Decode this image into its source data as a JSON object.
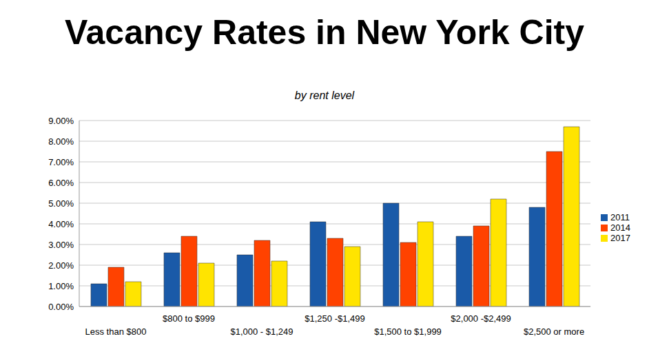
{
  "chart_data": {
    "type": "bar",
    "title": "Vacancy Rates in New York City",
    "subtitle": "by rent level",
    "categories": [
      "Less than $800",
      "$800 to $999",
      "$1,000 - $1,249",
      "$1,250 -$1,499",
      "$1,500 to $1,999",
      "$2,000 -$2,499",
      "$2,500 or more"
    ],
    "series": [
      {
        "name": "2011",
        "color": "#1a5aa8",
        "values": [
          1.1,
          2.6,
          2.5,
          4.1,
          5.0,
          3.4,
          4.8
        ]
      },
      {
        "name": "2014",
        "color": "#ff4200",
        "values": [
          1.9,
          3.4,
          3.2,
          3.3,
          3.1,
          3.9,
          7.5
        ]
      },
      {
        "name": "2017",
        "color": "#ffe400",
        "values": [
          1.2,
          2.1,
          2.2,
          2.9,
          4.1,
          5.2,
          8.7
        ]
      }
    ],
    "ylim": [
      0,
      9
    ],
    "yticks": [
      {
        "value": 0,
        "label": "0.00%"
      },
      {
        "value": 1,
        "label": "1.00%"
      },
      {
        "value": 2,
        "label": "2.00%"
      },
      {
        "value": 3,
        "label": "3.00%"
      },
      {
        "value": 4,
        "label": "4.00%"
      },
      {
        "value": 5,
        "label": "5.00%"
      },
      {
        "value": 6,
        "label": "6.00%"
      },
      {
        "value": 7,
        "label": "7.00%"
      },
      {
        "value": 8,
        "label": "8.00%"
      },
      {
        "value": 9,
        "label": "9.00%"
      }
    ],
    "grid": true,
    "legend": "right"
  }
}
